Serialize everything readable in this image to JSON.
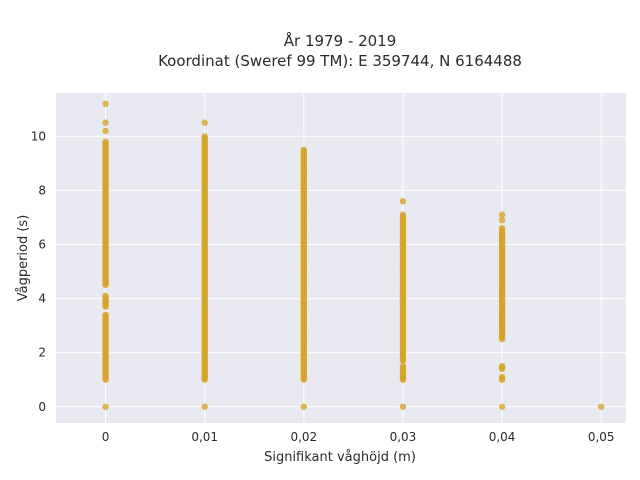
{
  "chart_data": {
    "type": "scatter",
    "title_line1": "År 1979 - 2019",
    "title_line2": "Koordinat (Sweref 99 TM): E 359744, N 6164488",
    "xlabel": "Signifikant våghöjd (m)",
    "ylabel": "Vågperiod (s)",
    "xlim": [
      -0.005,
      0.0525
    ],
    "ylim": [
      -0.6,
      11.6
    ],
    "x_ticks": [
      0,
      0.01,
      0.02,
      0.03,
      0.04,
      0.05
    ],
    "x_tick_labels": [
      "0",
      "0,01",
      "0,02",
      "0,03",
      "0,04",
      "0,05"
    ],
    "y_ticks": [
      0,
      2,
      4,
      6,
      8,
      10
    ],
    "y_tick_labels": [
      "0",
      "2",
      "4",
      "6",
      "8",
      "10"
    ],
    "grid": true,
    "background_color": "#e9e9f2",
    "marker_color": "#d4a52a",
    "series": [
      {
        "points_by_x": [
          {
            "x": 0,
            "bands": [
              [
                0,
                0
              ],
              [
                1.0,
                3.4
              ],
              [
                3.7,
                4.1
              ],
              [
                4.5,
                9.8
              ]
            ],
            "outliers": [
              10.2,
              10.5,
              11.2
            ]
          },
          {
            "x": 0.01,
            "bands": [
              [
                0,
                0
              ],
              [
                1.0,
                10.0
              ]
            ],
            "outliers": [
              10.5
            ]
          },
          {
            "x": 0.02,
            "bands": [
              [
                0,
                0
              ],
              [
                1.0,
                9.5
              ]
            ],
            "outliers": []
          },
          {
            "x": 0.03,
            "bands": [
              [
                0,
                0
              ],
              [
                1.0,
                1.5
              ],
              [
                1.7,
                7.1
              ]
            ],
            "outliers": [
              7.6
            ]
          },
          {
            "x": 0.04,
            "bands": [
              [
                0,
                0
              ],
              [
                1.0,
                1.1
              ],
              [
                1.4,
                1.5
              ],
              [
                2.5,
                6.6
              ]
            ],
            "outliers": [
              6.9,
              7.1
            ]
          },
          {
            "x": 0.05,
            "bands": [
              [
                0,
                0
              ]
            ],
            "outliers": []
          }
        ]
      }
    ]
  }
}
